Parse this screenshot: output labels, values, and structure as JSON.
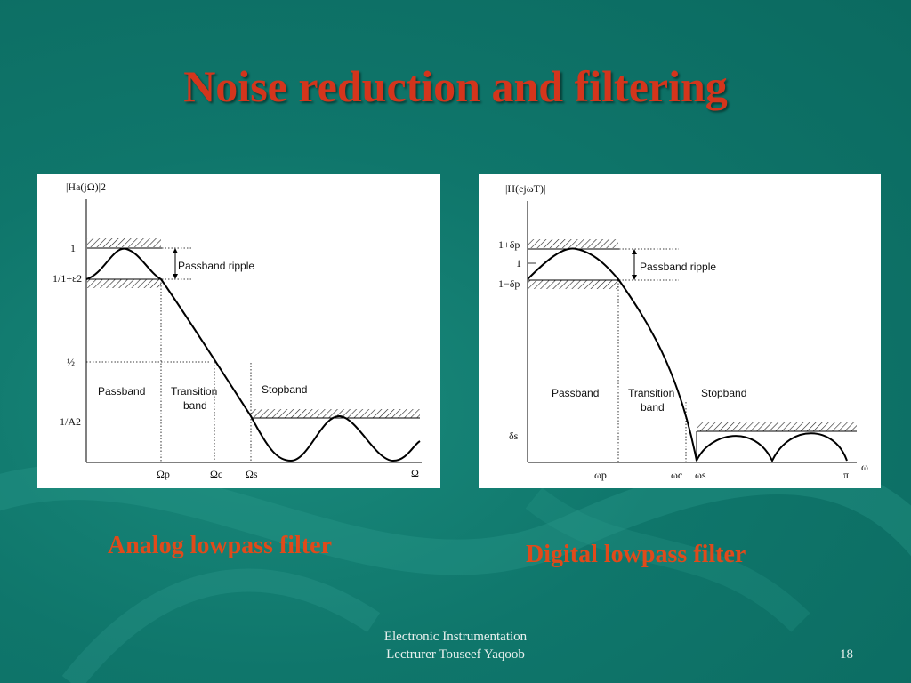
{
  "slide": {
    "title": "Noise reduction and filtering",
    "footer_line1": "Electronic Instrumentation",
    "footer_line2": "Lectrurer Touseef  Yaqoob",
    "page_number": "18"
  },
  "analog": {
    "caption": "Analog lowpass filter",
    "y_axis_label": "|Ha(jΩ)|2",
    "y_ticks": [
      "1",
      "1/1+ε2",
      "½",
      "1/A2"
    ],
    "x_ticks": [
      "Ωp",
      "Ωc",
      "Ωs",
      "Ω"
    ],
    "passband_ripple_label": "Passband ripple",
    "passband_label": "Passband",
    "transition_label_line1": "Transition",
    "transition_label_line2": "band",
    "stopband_label": "Stopband"
  },
  "digital": {
    "caption": "Digital lowpass filter",
    "y_axis_label": "|H(ejωT)|",
    "y_ticks": [
      "1+δp",
      "1",
      "1−δp",
      "δs"
    ],
    "x_ticks": [
      "ωp",
      "ωc",
      "ωs",
      "π",
      "ω"
    ],
    "passband_ripple_label": "Passband ripple",
    "passband_label": "Passband",
    "transition_label_line1": "Transition",
    "transition_label_line2": "band",
    "stopband_label": "Stopband"
  },
  "colors": {
    "background": "#0f766b",
    "title": "#d4351c",
    "caption": "#e04a1a",
    "footer": "#e8f0ee"
  }
}
